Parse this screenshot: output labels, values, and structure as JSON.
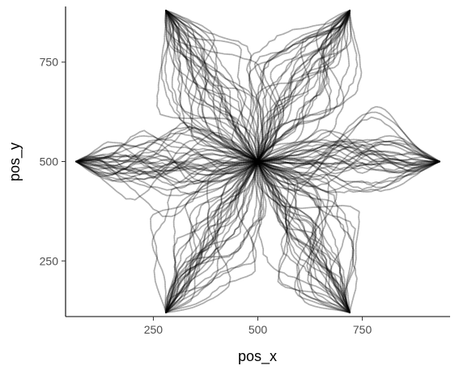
{
  "chart_data": {
    "type": "scatter",
    "description_marks": "overlapping dotted trajectories from the center to six star tips",
    "xlabel": "pos_x",
    "ylabel": "pos_y",
    "xlim": [
      40,
      960
    ],
    "ylim": [
      110,
      890
    ],
    "x_ticks": [
      250,
      500,
      750
    ],
    "y_ticks": [
      250,
      500,
      750
    ],
    "x_tick_labels": [
      "250",
      "500",
      "750"
    ],
    "y_tick_labels": [
      "250",
      "500",
      "750"
    ],
    "center": {
      "x": 500,
      "y": 500
    },
    "star_tips": [
      {
        "x": 935,
        "y": 500
      },
      {
        "x": 720,
        "y": 880
      },
      {
        "x": 280,
        "y": 880
      },
      {
        "x": 65,
        "y": 500
      },
      {
        "x": 280,
        "y": 120
      },
      {
        "x": 720,
        "y": 120
      }
    ],
    "trajectories_per_tip": 32,
    "grid": false,
    "legend": "none"
  }
}
